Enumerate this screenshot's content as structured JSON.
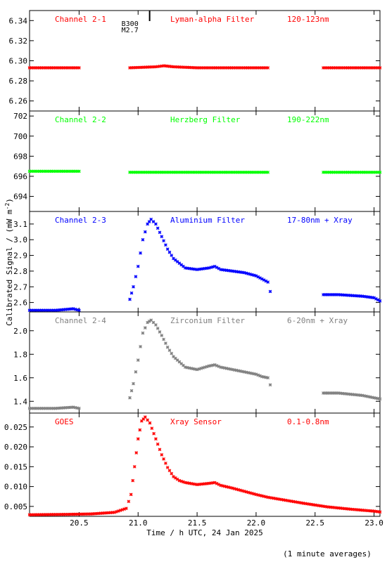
{
  "x_axis": {
    "label": "Time / h UTC, 24 Jan 2025",
    "range": [
      20.08,
      23.05
    ],
    "ticks": [
      20.5,
      21.0,
      21.5,
      22.0,
      22.5,
      23.0
    ],
    "tick_labels": [
      "20.5",
      "21.0",
      "21.5",
      "22.0",
      "22.5",
      "23.0"
    ]
  },
  "y_axis_label": "Calibrated Signal / (mW m",
  "y_axis_label_sup": "-2",
  "y_axis_label_end": ")",
  "footnote": "(1 minute averages)",
  "flare_marker": {
    "time": 21.05,
    "lines": [
      "B300",
      "M2.7"
    ]
  },
  "chart_data": [
    {
      "type": "scatter",
      "channel": "Channel 2-1",
      "filter": "Lyman-alpha Filter",
      "band": "120-123nm",
      "color": "#ff0000",
      "ylim": [
        6.25,
        6.35
      ],
      "yticks": [
        6.26,
        6.28,
        6.3,
        6.32,
        6.34
      ],
      "ytick_labels": [
        "6.26",
        "6.28",
        "6.30",
        "6.32",
        "6.34"
      ],
      "segments": [
        {
          "x": [
            20.08,
            20.5
          ],
          "y": [
            6.293,
            6.293
          ]
        },
        {
          "x": [
            20.93,
            21.15,
            21.22,
            21.3,
            21.5,
            22.1
          ],
          "y": [
            6.293,
            6.294,
            6.295,
            6.294,
            6.293,
            6.293
          ]
        },
        {
          "x": [
            22.57,
            23.05
          ],
          "y": [
            6.293,
            6.293
          ]
        }
      ]
    },
    {
      "type": "scatter",
      "channel": "Channel 2-2",
      "filter": "Herzberg Filter",
      "band": "190-222nm",
      "color": "#00ff00",
      "ylim": [
        692.5,
        702.5
      ],
      "yticks": [
        694,
        696,
        698,
        700,
        702
      ],
      "ytick_labels": [
        "694",
        "696",
        "698",
        "700",
        "702"
      ],
      "segments": [
        {
          "x": [
            20.08,
            20.5
          ],
          "y": [
            696.5,
            696.5
          ]
        },
        {
          "x": [
            20.93,
            22.1
          ],
          "y": [
            696.4,
            696.4
          ]
        },
        {
          "x": [
            22.57,
            23.05
          ],
          "y": [
            696.4,
            696.4
          ]
        }
      ]
    },
    {
      "type": "scatter",
      "channel": "Channel 2-3",
      "filter": "Aluminium Filter",
      "band": "17-80nm + Xray",
      "color": "#0000ff",
      "ylim": [
        2.54,
        3.18
      ],
      "yticks": [
        2.6,
        2.7,
        2.8,
        2.9,
        3.0,
        3.1
      ],
      "ytick_labels": [
        "2.6",
        "2.7",
        "2.8",
        "2.9",
        "3.0",
        "3.1"
      ],
      "segments": [
        {
          "x": [
            20.08,
            20.3,
            20.45,
            20.5
          ],
          "y": [
            2.55,
            2.55,
            2.56,
            2.55
          ]
        },
        {
          "x": [
            20.93,
            20.96,
            21.0,
            21.04,
            21.08,
            21.11,
            21.15,
            21.2,
            21.25,
            21.3,
            21.4,
            21.5,
            21.6,
            21.65,
            21.7,
            21.8,
            21.9,
            22.0,
            22.05,
            22.1
          ],
          "y": [
            2.62,
            2.7,
            2.83,
            3.0,
            3.1,
            3.13,
            3.1,
            3.02,
            2.94,
            2.88,
            2.82,
            2.81,
            2.82,
            2.83,
            2.81,
            2.8,
            2.79,
            2.77,
            2.75,
            2.73
          ]
        },
        {
          "x": [
            22.12
          ],
          "y": [
            2.67
          ]
        },
        {
          "x": [
            22.57,
            22.7,
            22.9,
            23.0,
            23.05
          ],
          "y": [
            2.65,
            2.65,
            2.64,
            2.63,
            2.61
          ]
        }
      ]
    },
    {
      "type": "scatter",
      "channel": "Channel 2-4",
      "filter": "Zirconium Filter",
      "band": "6-20nm + Xray",
      "color": "#808080",
      "ylim": [
        1.3,
        2.16
      ],
      "yticks": [
        1.4,
        1.6,
        1.8,
        2.0
      ],
      "ytick_labels": [
        "1.4",
        "1.6",
        "1.8",
        "2.0"
      ],
      "segments": [
        {
          "x": [
            20.08,
            20.3,
            20.45,
            20.5
          ],
          "y": [
            1.34,
            1.34,
            1.35,
            1.34
          ]
        },
        {
          "x": [
            20.93,
            20.96,
            21.0,
            21.04,
            21.08,
            21.11,
            21.15,
            21.2,
            21.25,
            21.3,
            21.4,
            21.5,
            21.6,
            21.65,
            21.7,
            21.8,
            21.9,
            22.0,
            22.05,
            22.1
          ],
          "y": [
            1.43,
            1.55,
            1.75,
            1.98,
            2.07,
            2.09,
            2.05,
            1.96,
            1.86,
            1.78,
            1.69,
            1.67,
            1.7,
            1.71,
            1.69,
            1.67,
            1.65,
            1.63,
            1.61,
            1.6
          ]
        },
        {
          "x": [
            22.12
          ],
          "y": [
            1.54
          ]
        },
        {
          "x": [
            22.57,
            22.7,
            22.9,
            23.0,
            23.05
          ],
          "y": [
            1.47,
            1.47,
            1.45,
            1.43,
            1.42
          ]
        }
      ]
    },
    {
      "type": "scatter",
      "channel": "GOES",
      "filter": "Xray Sensor",
      "band": "0.1-0.8nm",
      "color": "#ff0000",
      "ylim": [
        0.0025,
        0.0285
      ],
      "yticks": [
        0.005,
        0.01,
        0.015,
        0.02,
        0.025
      ],
      "ytick_labels": [
        "0.005",
        "0.010",
        "0.015",
        "0.020",
        "0.025"
      ],
      "segments": [
        {
          "x": [
            20.08,
            20.4,
            20.6,
            20.8,
            20.9,
            20.94,
            20.97,
            21.0,
            21.03,
            21.06,
            21.1,
            21.15,
            21.2,
            21.25,
            21.3,
            21.35,
            21.4,
            21.5,
            21.6,
            21.65,
            21.7,
            21.8,
            21.9,
            22.0,
            22.1,
            22.2,
            22.4,
            22.6,
            22.8,
            23.0,
            23.05
          ],
          "y": [
            0.0029,
            0.003,
            0.0031,
            0.0035,
            0.0045,
            0.008,
            0.015,
            0.022,
            0.0265,
            0.0275,
            0.026,
            0.022,
            0.018,
            0.0148,
            0.0125,
            0.0115,
            0.011,
            0.0105,
            0.0108,
            0.011,
            0.0103,
            0.0096,
            0.0088,
            0.008,
            0.0073,
            0.0068,
            0.0058,
            0.0049,
            0.0043,
            0.0038,
            0.0036
          ]
        }
      ]
    }
  ]
}
